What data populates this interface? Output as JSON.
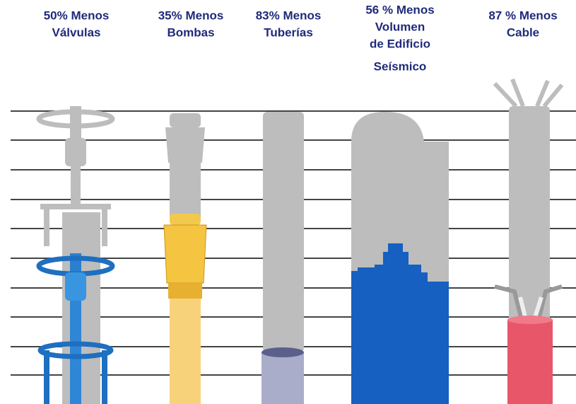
{
  "items": [
    {
      "label": [
        "50% Menos",
        "Válvulas"
      ]
    },
    {
      "label": [
        "35% Menos",
        "Bombas"
      ]
    },
    {
      "label": [
        "83% Menos",
        "Tuberías"
      ]
    },
    {
      "label": [
        "56 % Menos",
        "Volumen",
        "de Edificio",
        "Seísmico"
      ]
    },
    {
      "label": [
        "87 % Menos",
        "Cable"
      ]
    }
  ]
}
